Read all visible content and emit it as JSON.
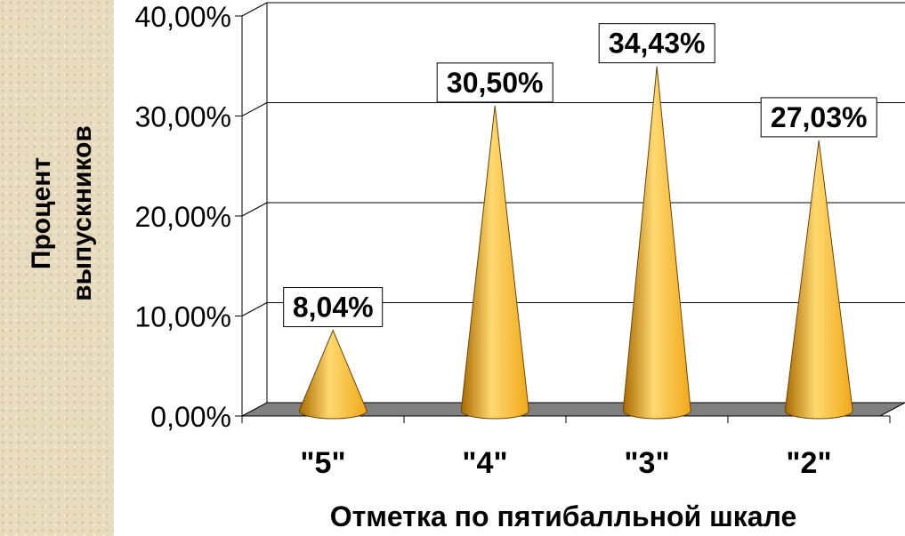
{
  "chart_data": {
    "type": "bar",
    "bar_shape": "cone",
    "categories": [
      "\"5\"",
      "\"4\"",
      "\"3\"",
      "\"2\""
    ],
    "values": [
      8.04,
      30.5,
      34.43,
      27.03
    ],
    "data_labels": [
      "8,04%",
      "30,50%",
      "34,43%",
      "27,03%"
    ],
    "ylabel_lines": [
      "Процент",
      "выпускников"
    ],
    "xlabel": "Отметка по пятибалльной шкале",
    "ylim": [
      0,
      40
    ],
    "yticks": [
      "0,00%",
      "10,00%",
      "20,00%",
      "30,00%",
      "40,00%"
    ],
    "grid": true,
    "colors": {
      "cone": "#f0a818",
      "cone_dark": "#a86a00",
      "cone_light": "#ffd870",
      "floor": "#808080"
    }
  }
}
